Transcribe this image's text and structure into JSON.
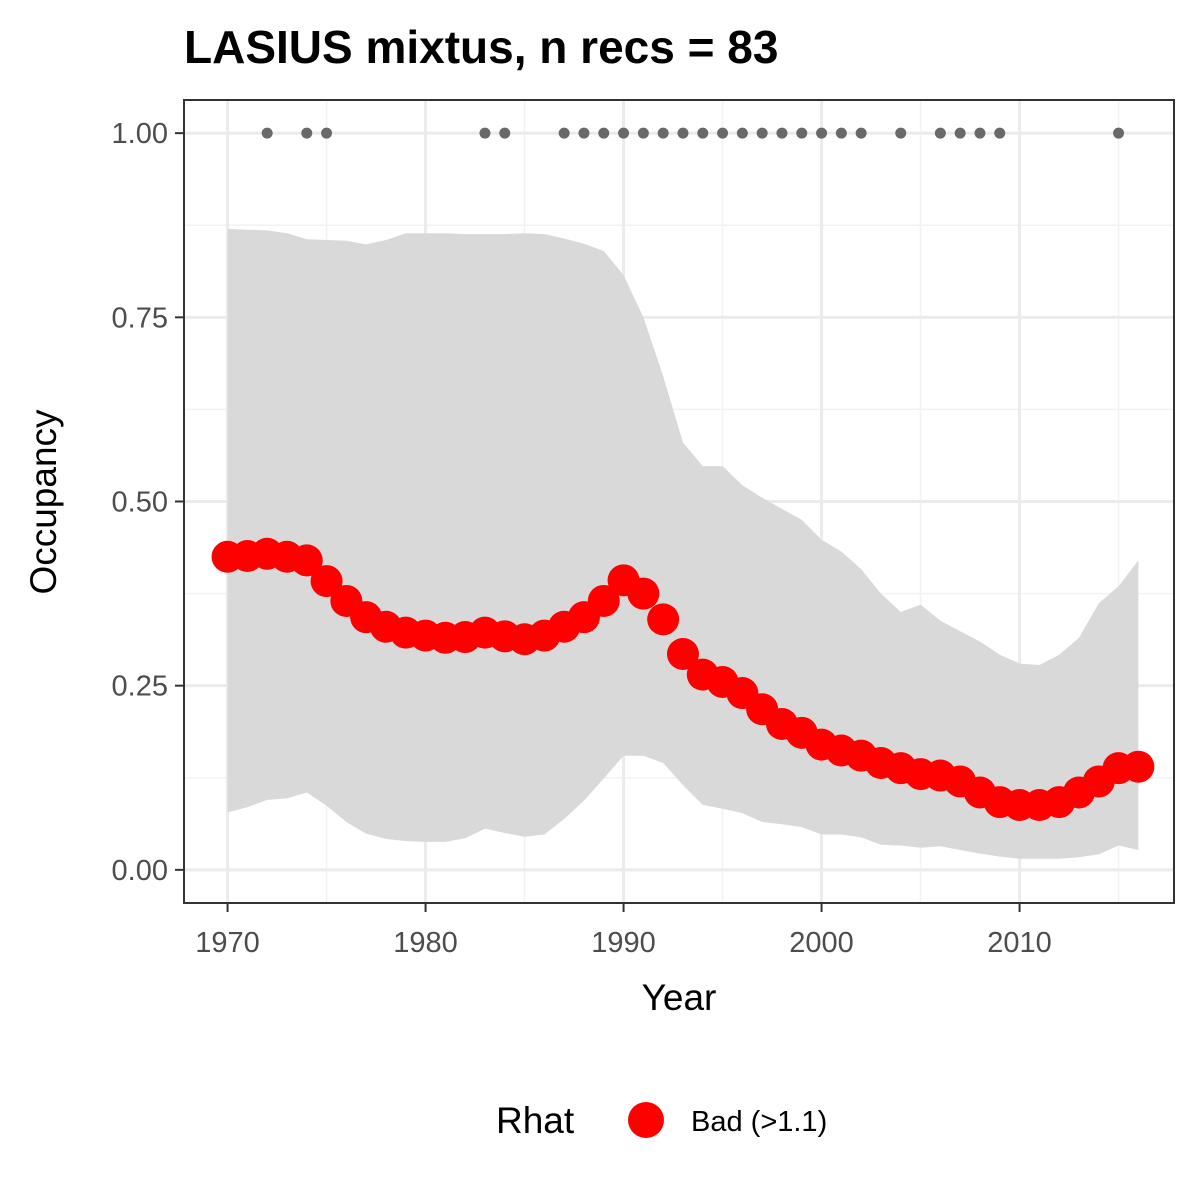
{
  "chart_data": {
    "type": "line",
    "title": "LASIUS mixtus, n recs = 83",
    "xlabel": "Year",
    "ylabel": "Occupancy",
    "xlim": [
      1967.8,
      2017.8
    ],
    "ylim": [
      -0.045,
      1.045
    ],
    "x_ticks": [
      1970,
      1980,
      1990,
      2000,
      2010
    ],
    "y_ticks": [
      0.0,
      0.25,
      0.5,
      0.75,
      1.0
    ],
    "x_tick_labels": [
      "1970",
      "1980",
      "1990",
      "2000",
      "2010"
    ],
    "y_tick_labels": [
      "0.00",
      "0.25",
      "0.50",
      "0.75",
      "1.00"
    ],
    "grid": true,
    "theme": "bw",
    "years": [
      1970,
      1971,
      1972,
      1973,
      1974,
      1975,
      1976,
      1977,
      1978,
      1979,
      1980,
      1981,
      1982,
      1983,
      1984,
      1985,
      1986,
      1987,
      1988,
      1989,
      1990,
      1991,
      1992,
      1993,
      1994,
      1995,
      1996,
      1997,
      1998,
      1999,
      2000,
      2001,
      2002,
      2003,
      2004,
      2005,
      2006,
      2007,
      2008,
      2009,
      2010,
      2011,
      2012,
      2013,
      2014,
      2015,
      2016
    ],
    "series": [
      {
        "name": "Bad (>1.1)",
        "kind": "mean occupancy",
        "color": "#ff0000",
        "values": [
          0.425,
          0.426,
          0.429,
          0.425,
          0.42,
          0.392,
          0.365,
          0.343,
          0.33,
          0.322,
          0.318,
          0.315,
          0.316,
          0.322,
          0.317,
          0.313,
          0.318,
          0.33,
          0.343,
          0.365,
          0.393,
          0.375,
          0.34,
          0.293,
          0.265,
          0.255,
          0.24,
          0.218,
          0.198,
          0.186,
          0.17,
          0.162,
          0.155,
          0.145,
          0.138,
          0.13,
          0.128,
          0.12,
          0.105,
          0.092,
          0.088,
          0.088,
          0.092,
          0.105,
          0.12,
          0.138,
          0.14
        ]
      },
      {
        "name": "",
        "kind": "credible interval upper",
        "color": "#d9d9d9",
        "values": [
          0.87,
          0.869,
          0.868,
          0.864,
          0.856,
          0.855,
          0.854,
          0.849,
          0.855,
          0.864,
          0.864,
          0.864,
          0.863,
          0.863,
          0.863,
          0.864,
          0.863,
          0.857,
          0.85,
          0.84,
          0.807,
          0.75,
          0.67,
          0.58,
          0.548,
          0.548,
          0.522,
          0.505,
          0.49,
          0.475,
          0.448,
          0.432,
          0.408,
          0.375,
          0.35,
          0.36,
          0.338,
          0.324,
          0.31,
          0.292,
          0.28,
          0.278,
          0.292,
          0.315,
          0.362,
          0.385,
          0.42
        ]
      },
      {
        "name": "",
        "kind": "credible interval lower",
        "color": "#d9d9d9",
        "values": [
          0.078,
          0.085,
          0.095,
          0.097,
          0.105,
          0.087,
          0.065,
          0.049,
          0.042,
          0.039,
          0.038,
          0.038,
          0.043,
          0.056,
          0.05,
          0.045,
          0.048,
          0.069,
          0.094,
          0.124,
          0.155,
          0.155,
          0.145,
          0.115,
          0.088,
          0.083,
          0.077,
          0.065,
          0.062,
          0.058,
          0.048,
          0.048,
          0.044,
          0.034,
          0.033,
          0.03,
          0.032,
          0.027,
          0.022,
          0.018,
          0.015,
          0.015,
          0.015,
          0.017,
          0.021,
          0.033,
          0.027
        ]
      }
    ],
    "record_years": [
      1972,
      1974,
      1975,
      1983,
      1984,
      1987,
      1988,
      1989,
      1990,
      1991,
      1992,
      1993,
      1994,
      1995,
      1996,
      1997,
      1998,
      1999,
      2000,
      2001,
      2002,
      2004,
      2006,
      2007,
      2008,
      2009,
      2015
    ],
    "record_value": 1.0,
    "record_color": "#696969",
    "legend": {
      "title": "Rhat",
      "label": "Bad (>1.1)",
      "color": "#ff0000",
      "placement": "bottom"
    }
  }
}
